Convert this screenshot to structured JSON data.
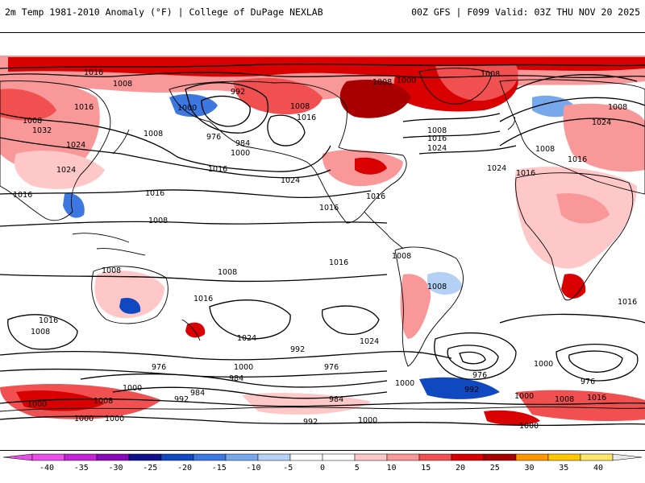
{
  "header": {
    "title": "2m Temp 1981-2010 Anomaly (°F) | College of DuPage NEXLAB",
    "model_run": "00Z GFS | F099 Valid: 03Z THU NOV 20 2025"
  },
  "colorbar": {
    "ticks": [
      "-40",
      "-35",
      "-30",
      "-25",
      "-20",
      "-15",
      "-10",
      "-5",
      "0",
      "5",
      "10",
      "15",
      "20",
      "25",
      "30",
      "35",
      "40"
    ],
    "colors": [
      "#e84ee8",
      "#c224d6",
      "#8a0ab8",
      "#10108a",
      "#1048c0",
      "#3c78e0",
      "#78a8ec",
      "#b4d0f4",
      "#ffffff",
      "#ffffff",
      "#ffc8c8",
      "#f89898",
      "#f05050",
      "#d80000",
      "#a80000",
      "#ff9800",
      "#ffc800",
      "#ffe868"
    ]
  },
  "contour_labels": [
    {
      "t": "1016"
    },
    {
      "t": "1008"
    },
    {
      "t": "1008"
    },
    {
      "t": "1016"
    },
    {
      "t": "1032"
    },
    {
      "t": "1024"
    },
    {
      "t": "1024"
    },
    {
      "t": "1016"
    },
    {
      "t": "1008"
    },
    {
      "t": "1000"
    },
    {
      "t": "992"
    },
    {
      "t": "976"
    },
    {
      "t": "984"
    },
    {
      "t": "1000"
    },
    {
      "t": "1016"
    },
    {
      "t": "1008"
    },
    {
      "t": "1016"
    },
    {
      "t": "1024"
    },
    {
      "t": "1008"
    },
    {
      "t": "1000"
    },
    {
      "t": "1008"
    },
    {
      "t": "1008"
    },
    {
      "t": "1016"
    },
    {
      "t": "1024"
    },
    {
      "t": "1016"
    },
    {
      "t": "1016"
    },
    {
      "t": "1024"
    },
    {
      "t": "1016"
    },
    {
      "t": "1008"
    },
    {
      "t": "1016"
    },
    {
      "t": "1008"
    },
    {
      "t": "1024"
    },
    {
      "t": "1008"
    },
    {
      "t": "1016"
    },
    {
      "t": "1008"
    },
    {
      "t": "1016"
    },
    {
      "t": "1008"
    },
    {
      "t": "1016"
    },
    {
      "t": "1008"
    },
    {
      "t": "1024"
    },
    {
      "t": "1008"
    },
    {
      "t": "1024"
    },
    {
      "t": "1016"
    },
    {
      "t": "1008"
    },
    {
      "t": "976"
    },
    {
      "t": "984"
    },
    {
      "t": "1000"
    },
    {
      "t": "992"
    },
    {
      "t": "976"
    },
    {
      "t": "984"
    },
    {
      "t": "1000"
    },
    {
      "t": "976"
    },
    {
      "t": "992"
    },
    {
      "t": "1000"
    },
    {
      "t": "1000"
    },
    {
      "t": "1008"
    },
    {
      "t": "992"
    },
    {
      "t": "984"
    },
    {
      "t": "1000"
    },
    {
      "t": "1000"
    },
    {
      "t": "1008"
    },
    {
      "t": "992"
    },
    {
      "t": "1000"
    },
    {
      "t": "1016"
    },
    {
      "t": "1000"
    },
    {
      "t": "1000"
    },
    {
      "t": "1016"
    },
    {
      "t": "1000"
    },
    {
      "t": "976"
    }
  ]
}
